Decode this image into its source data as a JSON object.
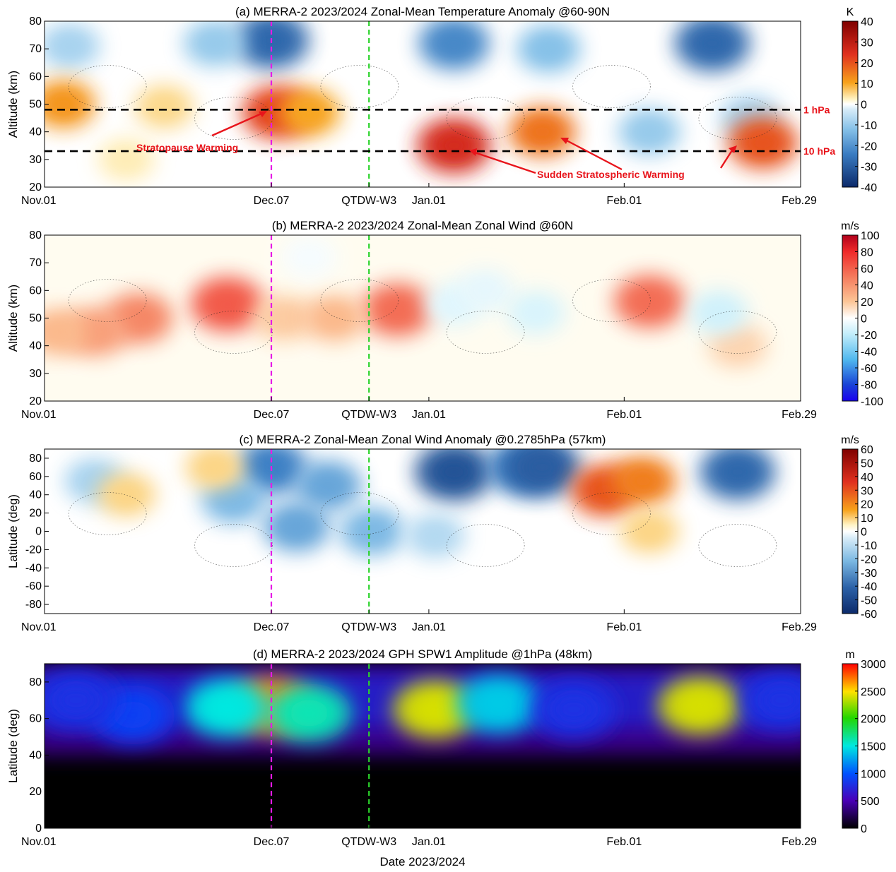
{
  "xlabel": "Date 2023/2024",
  "x_ticks": [
    "Nov.01",
    "Dec.07",
    "QTDW-W3",
    "Jan.01",
    "Feb.01",
    "Feb.29"
  ],
  "vlines": [
    {
      "label": "Dec.07",
      "color": "#e619e6"
    },
    {
      "label": "QTDW-W3",
      "color": "#2bd32b"
    }
  ],
  "panels": [
    {
      "title": "(a) MERRA-2 2023/2024 Zonal-Mean Temperature Anomaly @60-90N",
      "ylabel": "Altitude (km)",
      "y_ticks": [
        "80",
        "70",
        "60",
        "50",
        "40",
        "30",
        "20"
      ],
      "cbar_unit": "K",
      "cbar_ticks": [
        "40",
        "30",
        "20",
        "10",
        "0",
        "-10",
        "-20",
        "-30",
        "-40"
      ],
      "pressure_labels": [
        "1 hPa",
        "10 hPa"
      ],
      "annotations": [
        "Stratopause Warming",
        "Sudden Stratospheric Warming"
      ]
    },
    {
      "title": "(b) MERRA-2 2023/2024 Zonal-Mean Zonal Wind @60N",
      "ylabel": "Altitude (km)",
      "y_ticks": [
        "80",
        "70",
        "60",
        "50",
        "40",
        "30",
        "20"
      ],
      "cbar_unit": "m/s",
      "cbar_ticks": [
        "100",
        "80",
        "60",
        "40",
        "20",
        "0",
        "-20",
        "-40",
        "-60",
        "-80",
        "-100"
      ]
    },
    {
      "title": "(c) MERRA-2 Zonal-Mean Zonal Wind Anomaly @0.2785hPa (57km)",
      "ylabel": "Latitude (deg)",
      "y_ticks": [
        "80",
        "60",
        "40",
        "20",
        "0",
        "-20",
        "-40",
        "-60",
        "-80"
      ],
      "cbar_unit": "m/s",
      "cbar_ticks": [
        "60",
        "50",
        "40",
        "30",
        "20",
        "10",
        "0",
        "-10",
        "-20",
        "-30",
        "-40",
        "-50",
        "-60"
      ]
    },
    {
      "title": "(d) MERRA-2 2023/2024 GPH SPW1 Amplitude @1hPa (48km)",
      "ylabel": "Latitude (deg)",
      "y_ticks": [
        "80",
        "60",
        "40",
        "20",
        "0"
      ],
      "cbar_unit": "m",
      "cbar_ticks": [
        "3000",
        "2500",
        "2000",
        "1500",
        "1000",
        "500",
        "0"
      ]
    }
  ],
  "chart_data": [
    {
      "type": "heatmap",
      "title": "(a) MERRA-2 2023/2024 Zonal-Mean Temperature Anomaly @60-90N",
      "xlabel": "",
      "ylabel": "Altitude (km)",
      "xlim": [
        0,
        120
      ],
      "ylim": [
        20,
        80
      ],
      "colorbar": {
        "label": "K",
        "range": [
          -40,
          40
        ]
      },
      "blobs": [
        {
          "day": 106,
          "alt": 72,
          "value": -28
        },
        {
          "day": 36,
          "alt": 73,
          "value": -28
        },
        {
          "day": 65,
          "alt": 72,
          "value": -22
        },
        {
          "day": 80,
          "alt": 70,
          "value": -12
        },
        {
          "day": 27,
          "alt": 72,
          "value": -10
        },
        {
          "day": 4,
          "alt": 71,
          "value": -8
        },
        {
          "day": 96,
          "alt": 40,
          "value": -10
        },
        {
          "day": 112,
          "alt": 45,
          "value": -8
        },
        {
          "day": 65,
          "alt": 35,
          "value": 26
        },
        {
          "day": 114,
          "alt": 36,
          "value": 20
        },
        {
          "day": 79,
          "alt": 40,
          "value": 16
        },
        {
          "day": 37,
          "alt": 47,
          "value": 22
        },
        {
          "day": 42,
          "alt": 47,
          "value": 10
        },
        {
          "day": 19,
          "alt": 49,
          "value": 5
        },
        {
          "day": 3,
          "alt": 50,
          "value": 12
        },
        {
          "day": 13,
          "alt": 30,
          "value": 3
        }
      ]
    },
    {
      "type": "heatmap",
      "title": "(b) MERRA-2 2023/2024 Zonal-Mean Zonal Wind @60N",
      "xlabel": "",
      "ylabel": "Altitude (km)",
      "xlim": [
        0,
        120
      ],
      "ylim": [
        20,
        80
      ],
      "colorbar": {
        "label": "m/s",
        "range": [
          -100,
          100
        ]
      },
      "blobs": [
        {
          "day": 29,
          "alt": 55,
          "value": 62
        },
        {
          "day": 15,
          "alt": 50,
          "value": 45
        },
        {
          "day": 8,
          "alt": 45,
          "value": 35
        },
        {
          "day": 2,
          "alt": 45,
          "value": 25
        },
        {
          "day": 56,
          "alt": 53,
          "value": 55
        },
        {
          "day": 96,
          "alt": 56,
          "value": 55
        },
        {
          "day": 38,
          "alt": 50,
          "value": 18
        },
        {
          "day": 46,
          "alt": 50,
          "value": 25
        },
        {
          "day": 110,
          "alt": 40,
          "value": 15
        },
        {
          "day": 65,
          "alt": 55,
          "value": -10
        },
        {
          "day": 70,
          "alt": 60,
          "value": -8
        },
        {
          "day": 78,
          "alt": 52,
          "value": -12
        },
        {
          "day": 107,
          "alt": 52,
          "value": -15
        },
        {
          "day": 42,
          "alt": 72,
          "value": -3
        }
      ]
    },
    {
      "type": "heatmap",
      "title": "(c) MERRA-2 Zonal-Mean Zonal Wind Anomaly @0.2785hPa (57km)",
      "xlabel": "",
      "ylabel": "Latitude (deg)",
      "xlim": [
        0,
        120
      ],
      "ylim": [
        -90,
        90
      ],
      "colorbar": {
        "label": "m/s",
        "range": [
          -60,
          60
        ]
      },
      "blobs": [
        {
          "day": 65,
          "lat": 65,
          "value": -48
        },
        {
          "day": 76,
          "lat": 70,
          "value": -35
        },
        {
          "day": 79,
          "lat": 70,
          "value": -45
        },
        {
          "day": 110,
          "lat": 65,
          "value": -42
        },
        {
          "day": 36,
          "lat": 70,
          "value": -35
        },
        {
          "day": 45,
          "lat": 50,
          "value": -25
        },
        {
          "day": 30,
          "lat": 35,
          "value": -20
        },
        {
          "day": 40,
          "lat": 5,
          "value": -25
        },
        {
          "day": 52,
          "lat": 0,
          "value": -20
        },
        {
          "day": 62,
          "lat": -5,
          "value": -10
        },
        {
          "day": 8,
          "lat": 55,
          "value": -12
        },
        {
          "day": 89,
          "lat": 45,
          "value": 30
        },
        {
          "day": 95,
          "lat": 55,
          "value": 22
        },
        {
          "day": 13,
          "lat": 40,
          "value": 8
        },
        {
          "day": 27,
          "lat": 70,
          "value": 8
        },
        {
          "day": 96,
          "lat": 0,
          "value": 8
        }
      ]
    },
    {
      "type": "heatmap",
      "title": "(d) MERRA-2 2023/2024 GPH SPW1 Amplitude @1hPa (48km)",
      "xlabel": "Date 2023/2024",
      "ylabel": "Latitude (deg)",
      "xlim": [
        0,
        120
      ],
      "ylim": [
        0,
        90
      ],
      "colorbar": {
        "label": "m",
        "range": [
          0,
          3000
        ]
      },
      "blobs": [
        {
          "day": 36,
          "lat": 67,
          "value": 2700
        },
        {
          "day": 42,
          "lat": 63,
          "value": 1600
        },
        {
          "day": 29,
          "lat": 66,
          "value": 1500
        },
        {
          "day": 62,
          "lat": 65,
          "value": 2400
        },
        {
          "day": 72,
          "lat": 68,
          "value": 1400
        },
        {
          "day": 104,
          "lat": 67,
          "value": 2400
        },
        {
          "day": 14,
          "lat": 62,
          "value": 900
        },
        {
          "day": 5,
          "lat": 70,
          "value": 800
        },
        {
          "day": 84,
          "lat": 65,
          "value": 800
        },
        {
          "day": 117,
          "lat": 70,
          "value": 800
        }
      ]
    }
  ]
}
